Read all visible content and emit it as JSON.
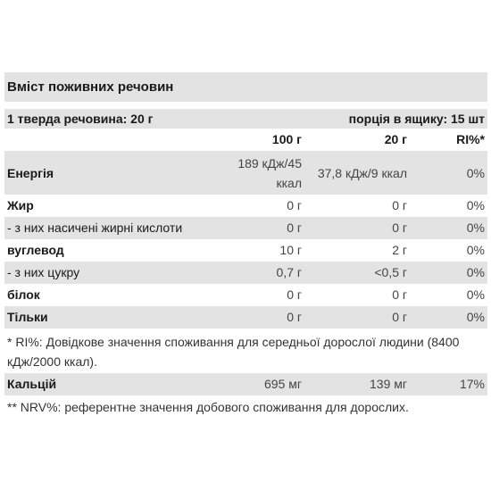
{
  "title": "Вміст поживних речовин",
  "serving": {
    "left": "1 тверда речовина: 20 г",
    "right": "порція в ящику: 15 шт"
  },
  "columns": [
    "",
    "100 г",
    "20 г",
    "RI%*"
  ],
  "rows": [
    {
      "name": "Енергія",
      "per100": "189 кДж/45 ккал",
      "per20": "37,8 кДж/9 ккал",
      "ri": "0%"
    },
    {
      "name": "Жир",
      "per100": "0 г",
      "per20": "0 г",
      "ri": "0%"
    },
    {
      "name": "- з них насичені жирні кислоти",
      "per100": "0 г",
      "per20": "0 г",
      "ri": "0%"
    },
    {
      "name": "вуглевод",
      "per100": "10 г",
      "per20": "2 г",
      "ri": "0%"
    },
    {
      "name": "- з них цукру",
      "per100": "0,7 г",
      "per20": "<0,5 г",
      "ri": "0%"
    },
    {
      "name": "білок",
      "per100": "0 г",
      "per20": "0 г",
      "ri": "0%"
    },
    {
      "name": "Тільки",
      "per100": "0 г",
      "per20": "0 г",
      "ri": "0%"
    }
  ],
  "note_ri": "* RI%: Довідкове значення споживання для середньої дорослої людини (8400 кДж/2000 ккал).",
  "calcium": {
    "name": "Кальцій",
    "per100": "695 мг",
    "per20": "139 мг",
    "ri": "17%"
  },
  "note_nrv": "** NRV%: референтне значення добового споживання для дорослих."
}
